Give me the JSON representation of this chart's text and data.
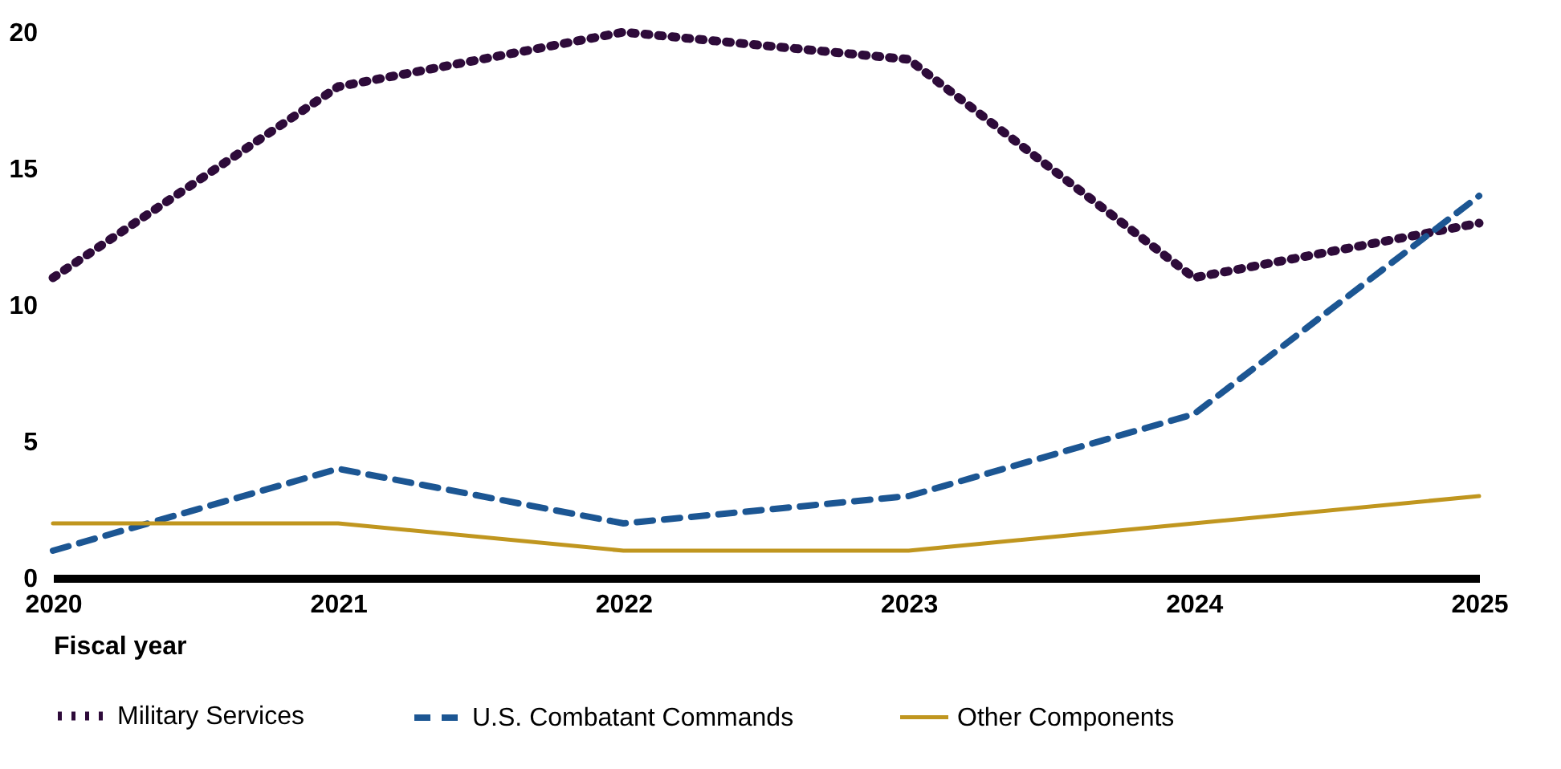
{
  "chart_data": {
    "type": "line",
    "xlabel": "Fiscal year",
    "x": [
      2020,
      2021,
      2022,
      2023,
      2024,
      2025
    ],
    "xlim": [
      2020,
      2025
    ],
    "xticks": [
      2020,
      2021,
      2022,
      2023,
      2024,
      2025
    ],
    "ylim": [
      0,
      20
    ],
    "yticks": [
      0,
      5,
      10,
      15,
      20
    ],
    "grid": false,
    "legend": "bottom",
    "marker": "none",
    "series": [
      {
        "name": "Military Services",
        "color": "#2e0b3a",
        "line_style": "dotted",
        "values": [
          11,
          18,
          20,
          19,
          11,
          13
        ]
      },
      {
        "name": "U.S. Combatant Commands",
        "color": "#1c5693",
        "line_style": "dashed",
        "values": [
          1,
          4,
          2,
          3,
          6,
          14
        ]
      },
      {
        "name": "Other Components",
        "color": "#c0961f",
        "line_style": "solid",
        "values": [
          2,
          2,
          1,
          1,
          2,
          3
        ]
      }
    ]
  }
}
